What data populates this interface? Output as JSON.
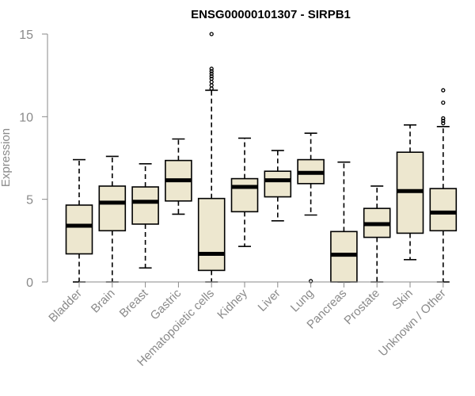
{
  "chart_data": {
    "type": "box",
    "title": "ENSG00000101307 - SIRPB1",
    "xlabel": "",
    "ylabel": "Expression",
    "ylim": [
      0,
      15
    ],
    "yticks": [
      0,
      5,
      10,
      15
    ],
    "colors": {
      "box_fill": "#ede7cf",
      "stroke": "#000000",
      "axis": "#8a8a8a"
    },
    "categories": [
      "Bladder",
      "Brain",
      "Breast",
      "Gastric",
      "Hematopoietic cells",
      "Kidney",
      "Liver",
      "Lung",
      "Pancreas",
      "Prostate",
      "Skin",
      "Unknown / Other"
    ],
    "boxes": [
      {
        "name": "Bladder",
        "min": 0.0,
        "q1": 1.7,
        "median": 3.4,
        "q3": 4.65,
        "max": 7.4,
        "outliers": []
      },
      {
        "name": "Brain",
        "min": 0.0,
        "q1": 3.1,
        "median": 4.8,
        "q3": 5.8,
        "max": 7.6,
        "outliers": []
      },
      {
        "name": "Breast",
        "min": 0.85,
        "q1": 3.5,
        "median": 4.85,
        "q3": 5.75,
        "max": 7.15,
        "outliers": []
      },
      {
        "name": "Gastric",
        "min": 4.1,
        "q1": 4.9,
        "median": 6.15,
        "q3": 7.35,
        "max": 8.65,
        "outliers": []
      },
      {
        "name": "Hematopoietic cells",
        "min": 0.0,
        "q1": 0.7,
        "median": 1.7,
        "q3": 5.05,
        "max": 11.6,
        "outliers": [
          11.7,
          11.9,
          12.1,
          12.3,
          12.45,
          12.6,
          12.75,
          12.9,
          15.0
        ]
      },
      {
        "name": "Kidney",
        "min": 2.15,
        "q1": 4.25,
        "median": 5.75,
        "q3": 6.25,
        "max": 8.7,
        "outliers": []
      },
      {
        "name": "Liver",
        "min": 3.7,
        "q1": 5.15,
        "median": 6.15,
        "q3": 6.7,
        "max": 7.95,
        "outliers": []
      },
      {
        "name": "Lung",
        "min": 4.05,
        "q1": 5.95,
        "median": 6.6,
        "q3": 7.4,
        "max": 9.0,
        "outliers": [
          0.05
        ]
      },
      {
        "name": "Pancreas",
        "min": 0.0,
        "q1": 0.0,
        "median": 1.65,
        "q3": 3.05,
        "max": 7.25,
        "outliers": []
      },
      {
        "name": "Prostate",
        "min": 0.0,
        "q1": 2.7,
        "median": 3.5,
        "q3": 4.45,
        "max": 5.8,
        "outliers": []
      },
      {
        "name": "Skin",
        "min": 1.35,
        "q1": 2.95,
        "median": 5.5,
        "q3": 7.85,
        "max": 9.5,
        "outliers": []
      },
      {
        "name": "Unknown / Other",
        "min": 0.0,
        "q1": 3.1,
        "median": 4.2,
        "q3": 5.65,
        "max": 9.4,
        "outliers": [
          9.6,
          9.75,
          9.9,
          10.85,
          11.6
        ]
      }
    ]
  }
}
